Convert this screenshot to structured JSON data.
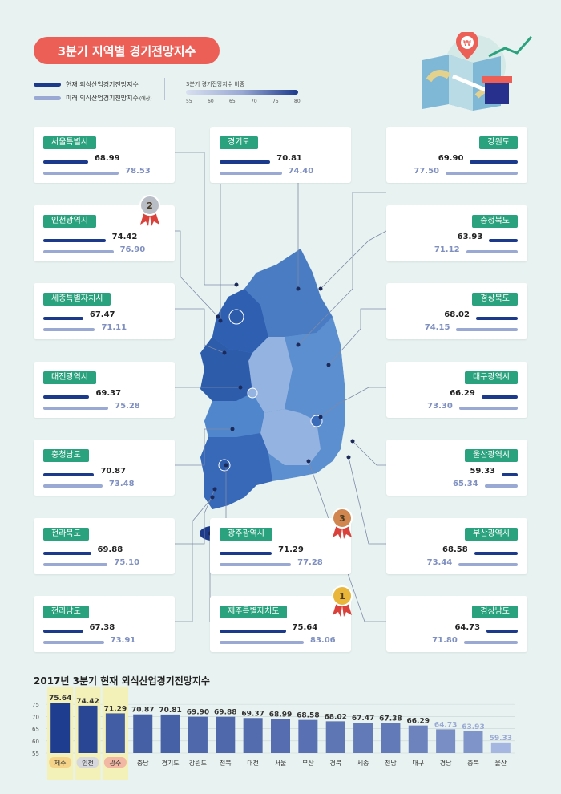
{
  "title": "3분기 지역별 경기전망지수",
  "legend": {
    "current": "현재 외식산업경기전망지수",
    "future": "미래 외식산업경기전망지수",
    "future_suffix": "(예상)",
    "scale_title": "3분기 경기전망지수 비중",
    "scale_ticks": [
      "55",
      "60",
      "65",
      "70",
      "75",
      "80"
    ]
  },
  "colors": {
    "current": "#1c3a8c",
    "future": "#9aa9d4",
    "label_bg": "#2aa27d",
    "title_bg": "#ec5f57",
    "highlight": "#f3f1b8"
  },
  "regions": [
    {
      "name": "서울특별시",
      "current": "68.99",
      "future": "78.53",
      "side": "left"
    },
    {
      "name": "인천광역시",
      "current": "74.42",
      "future": "76.90",
      "side": "left",
      "medal": "2"
    },
    {
      "name": "세종특별자치시",
      "current": "67.47",
      "future": "71.11",
      "side": "left"
    },
    {
      "name": "대전광역시",
      "current": "69.37",
      "future": "75.28",
      "side": "left"
    },
    {
      "name": "충청남도",
      "current": "70.87",
      "future": "73.48",
      "side": "left"
    },
    {
      "name": "전라북도",
      "current": "69.88",
      "future": "75.10",
      "side": "left"
    },
    {
      "name": "전라남도",
      "current": "67.38",
      "future": "73.91",
      "side": "left"
    },
    {
      "name": "경기도",
      "current": "70.81",
      "future": "74.40",
      "side": "center"
    },
    {
      "name": "광주광역시",
      "current": "71.29",
      "future": "77.28",
      "side": "center",
      "medal": "3"
    },
    {
      "name": "제주특별자치도",
      "current": "75.64",
      "future": "83.06",
      "side": "center",
      "medal": "1"
    },
    {
      "name": "강원도",
      "current": "69.90",
      "future": "77.50",
      "side": "right"
    },
    {
      "name": "충청북도",
      "current": "63.93",
      "future": "71.12",
      "side": "right"
    },
    {
      "name": "경상북도",
      "current": "68.02",
      "future": "74.15",
      "side": "right"
    },
    {
      "name": "대구광역시",
      "current": "66.29",
      "future": "73.30",
      "side": "right"
    },
    {
      "name": "울산광역시",
      "current": "59.33",
      "future": "65.34",
      "side": "right"
    },
    {
      "name": "부산광역시",
      "current": "68.58",
      "future": "73.44",
      "side": "right"
    },
    {
      "name": "경상남도",
      "current": "64.73",
      "future": "71.80",
      "side": "right"
    }
  ],
  "chart_data": {
    "type": "bar",
    "title": "2017년 3분기 현재 외식산업경기전망지수",
    "categories": [
      "제주",
      "인천",
      "광주",
      "충남",
      "경기도",
      "강원도",
      "전북",
      "대전",
      "서울",
      "부산",
      "경북",
      "세종",
      "전남",
      "대구",
      "경남",
      "충북",
      "울산"
    ],
    "values": [
      75.64,
      74.42,
      71.29,
      70.87,
      70.81,
      69.9,
      69.88,
      69.37,
      68.99,
      68.58,
      68.02,
      67.47,
      67.38,
      66.29,
      64.73,
      63.93,
      59.33
    ],
    "value_labels": [
      "75.64",
      "74.42",
      "71.29",
      "70.87",
      "70.81",
      "69.90",
      "69.88",
      "69.37",
      "68.99",
      "68.58",
      "68.02",
      "67.47",
      "67.38",
      "66.29",
      "64.73",
      "63.93",
      "59.33"
    ],
    "yticks": [
      "75",
      "70",
      "65",
      "60",
      "55"
    ],
    "ylim": [
      55,
      78
    ],
    "highlighted": [
      "제주",
      "인천",
      "광주"
    ]
  }
}
